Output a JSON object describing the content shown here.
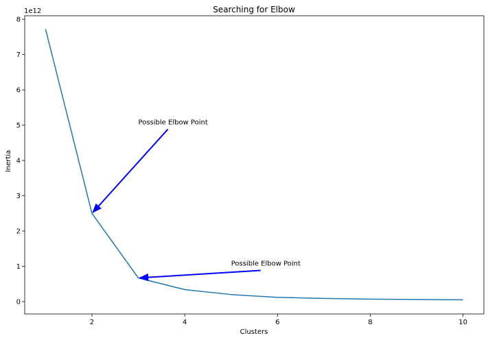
{
  "chart_data": {
    "type": "line",
    "title": "Searching for Elbow",
    "xlabel": "Clusters",
    "ylabel": "Inertia",
    "y_scale_label": "1e12",
    "xlim": [
      0.55,
      10.45
    ],
    "ylim": [
      -0.35,
      8.1
    ],
    "x_ticks": [
      2,
      4,
      6,
      8,
      10
    ],
    "y_ticks": [
      0,
      1,
      2,
      3,
      4,
      5,
      6,
      7,
      8
    ],
    "grid": false,
    "series": [
      {
        "color": "#1f77b4",
        "x": [
          1,
          2,
          3,
          4,
          5,
          6,
          7,
          8,
          9,
          10
        ],
        "y": [
          7.72,
          2.5,
          0.67,
          0.34,
          0.2,
          0.12,
          0.09,
          0.07,
          0.06,
          0.05
        ]
      }
    ],
    "annotations": [
      {
        "text": "Possible Elbow Point",
        "target": [
          2,
          2.5
        ],
        "text_pos": [
          3,
          5.0
        ],
        "color": "#0000ff"
      },
      {
        "text": "Possible Elbow Point",
        "target": [
          3,
          0.67
        ],
        "text_pos": [
          5,
          1.0
        ],
        "color": "#0000ff"
      }
    ]
  }
}
